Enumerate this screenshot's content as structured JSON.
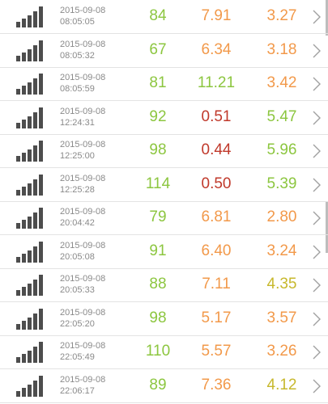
{
  "colors": {
    "green": "#8cc63f",
    "orange": "#f2994a",
    "red": "#c0392b",
    "olive": "#c7b82c"
  },
  "icons": {
    "signal": "signal-strength-icon",
    "chevron": "chevron-right-icon"
  },
  "rows": [
    {
      "date": "2015-09-08",
      "time": "08:05:05",
      "v1": "84",
      "v1c": "green",
      "v2": "7.91",
      "v2c": "orange",
      "v3": "3.27",
      "v3c": "orange"
    },
    {
      "date": "2015-09-08",
      "time": "08:05:32",
      "v1": "67",
      "v1c": "green",
      "v2": "6.34",
      "v2c": "orange",
      "v3": "3.18",
      "v3c": "orange"
    },
    {
      "date": "2015-09-08",
      "time": "08:05:59",
      "v1": "81",
      "v1c": "green",
      "v2": "11.21",
      "v2c": "green",
      "v3": "3.42",
      "v3c": "orange"
    },
    {
      "date": "2015-09-08",
      "time": "12:24:31",
      "v1": "92",
      "v1c": "green",
      "v2": "0.51",
      "v2c": "red",
      "v3": "5.47",
      "v3c": "green"
    },
    {
      "date": "2015-09-08",
      "time": "12:25:00",
      "v1": "98",
      "v1c": "green",
      "v2": "0.44",
      "v2c": "red",
      "v3": "5.96",
      "v3c": "green"
    },
    {
      "date": "2015-09-08",
      "time": "12:25:28",
      "v1": "114",
      "v1c": "green",
      "v2": "0.50",
      "v2c": "red",
      "v3": "5.39",
      "v3c": "green"
    },
    {
      "date": "2015-09-08",
      "time": "20:04:42",
      "v1": "79",
      "v1c": "green",
      "v2": "6.81",
      "v2c": "orange",
      "v3": "2.80",
      "v3c": "orange"
    },
    {
      "date": "2015-09-08",
      "time": "20:05:08",
      "v1": "91",
      "v1c": "green",
      "v2": "6.40",
      "v2c": "orange",
      "v3": "3.24",
      "v3c": "orange"
    },
    {
      "date": "2015-09-08",
      "time": "20:05:33",
      "v1": "88",
      "v1c": "green",
      "v2": "7.11",
      "v2c": "orange",
      "v3": "4.35",
      "v3c": "olive"
    },
    {
      "date": "2015-09-08",
      "time": "22:05:20",
      "v1": "98",
      "v1c": "green",
      "v2": "5.17",
      "v2c": "orange",
      "v3": "3.57",
      "v3c": "orange"
    },
    {
      "date": "2015-09-08",
      "time": "22:05:49",
      "v1": "110",
      "v1c": "green",
      "v2": "5.57",
      "v2c": "orange",
      "v3": "3.26",
      "v3c": "orange"
    },
    {
      "date": "2015-09-08",
      "time": "22:06:17",
      "v1": "89",
      "v1c": "green",
      "v2": "7.36",
      "v2c": "orange",
      "v3": "4.12",
      "v3c": "olive"
    }
  ]
}
